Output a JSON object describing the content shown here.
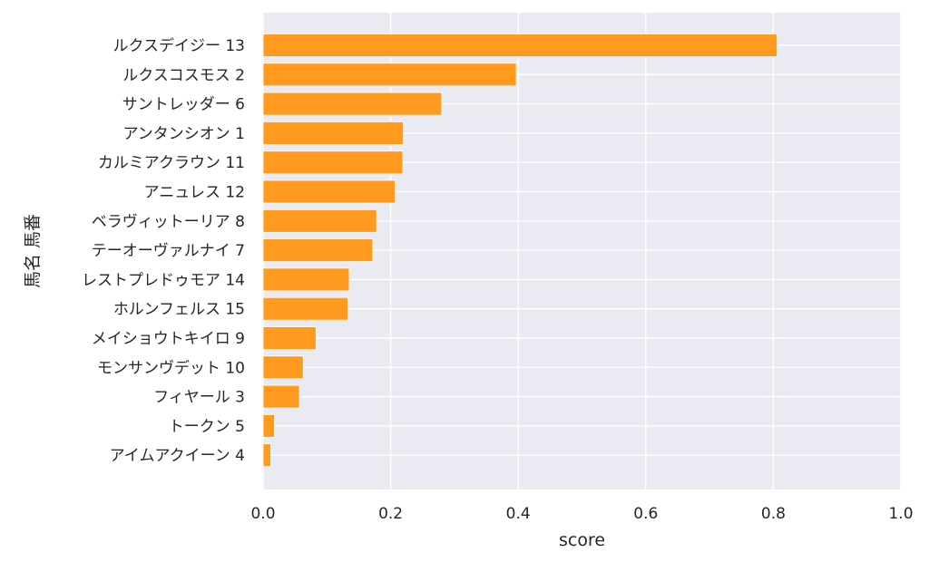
{
  "chart_data": {
    "type": "bar",
    "orientation": "horizontal",
    "categories": [
      "ルクスデイジー 13",
      "ルクスコスモス 2",
      "サントレッダー 6",
      "アンタンシオン 1",
      "カルミアクラウン 11",
      "アニュレス 12",
      "ベラヴィットーリア 8",
      "テーオーヴァルナイ 7",
      "レストプレドゥモア 14",
      "ホルンフェルス 15",
      "メイショウトキイロ 9",
      "モンサンヴデット 10",
      "フィヤール 3",
      "トークン 5",
      "アイムアクイーン 4"
    ],
    "values": [
      0.806,
      0.397,
      0.28,
      0.22,
      0.219,
      0.207,
      0.178,
      0.172,
      0.135,
      0.133,
      0.083,
      0.063,
      0.057,
      0.018,
      0.012
    ],
    "xlabel": "score",
    "ylabel": "馬名 馬番",
    "xlim": [
      0.0,
      1.0
    ],
    "xticks": [
      "0.0",
      "0.2",
      "0.4",
      "0.6",
      "0.8",
      "1.0"
    ],
    "grid": true,
    "bar_color": "#ff9a1f",
    "background_color": "#eaeaf2"
  }
}
